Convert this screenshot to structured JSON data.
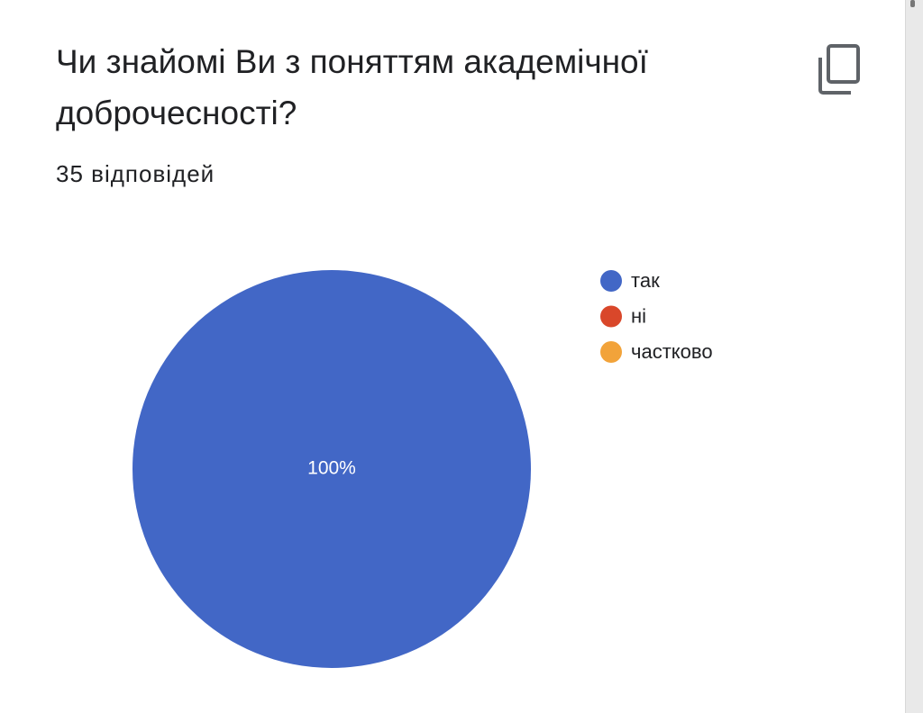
{
  "chart_data": {
    "type": "pie",
    "title": "Чи знайомі Ви з поняттям академічної доброчесності?",
    "subtitle": "35 відповідей",
    "series": [
      {
        "name": "так",
        "color": "#4267c6",
        "values": [
          100
        ],
        "value_labels": [
          "100%"
        ]
      },
      {
        "name": "ні",
        "color": "#d9472a",
        "values": [
          0
        ],
        "value_labels": [
          null
        ]
      },
      {
        "name": "частково",
        "color": "#f2a33a",
        "values": [
          0
        ],
        "value_labels": [
          null
        ]
      }
    ],
    "legend": "right"
  }
}
